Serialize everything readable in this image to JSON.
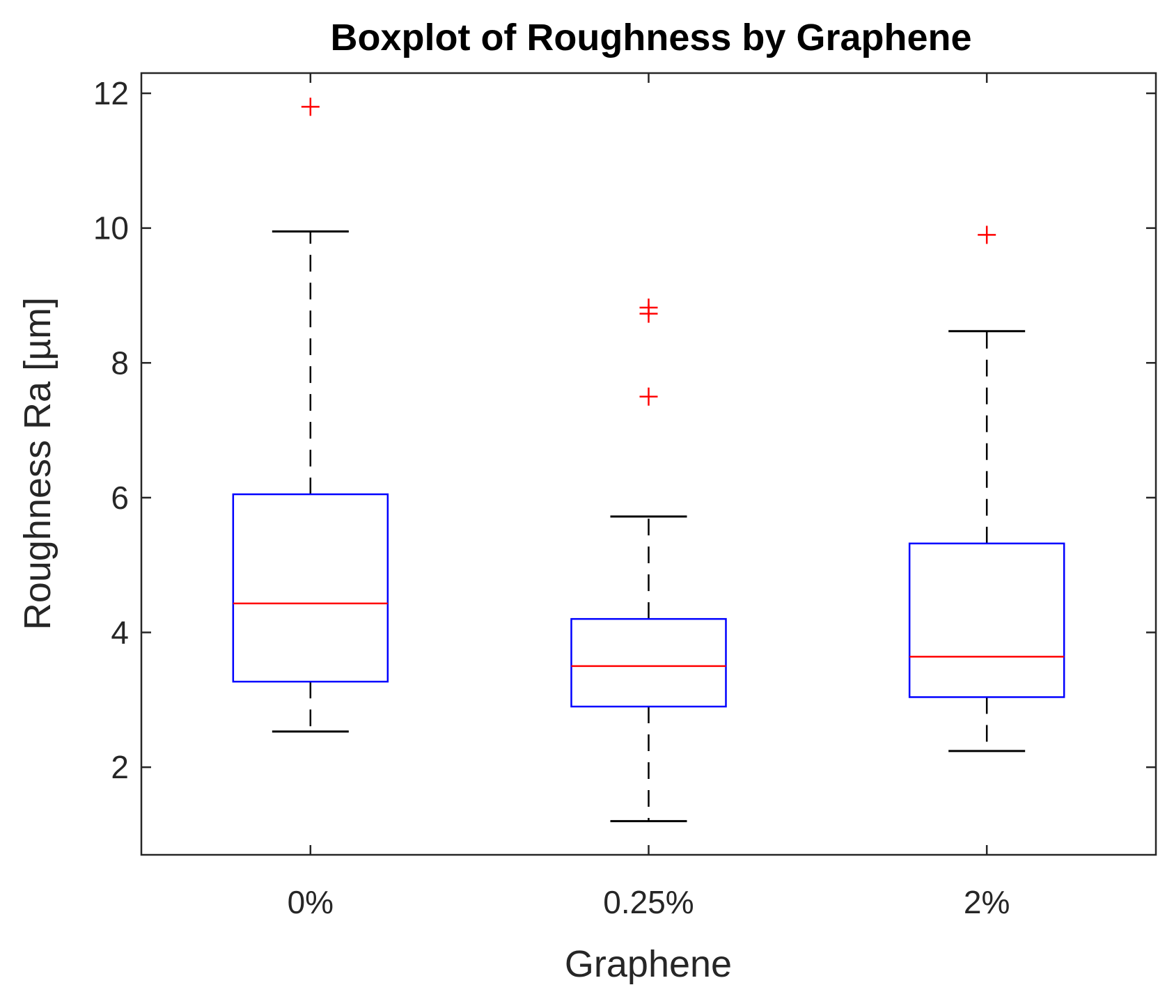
{
  "chart_data": {
    "type": "boxplot",
    "title": "Boxplot of Roughness by Graphene",
    "xlabel": "Graphene",
    "ylabel": "Roughness Ra [µm]",
    "categories": [
      "0%",
      "0.25%",
      "2%"
    ],
    "ylim": [
      0.7,
      12.3
    ],
    "yticks": [
      2,
      4,
      6,
      8,
      10,
      12
    ],
    "ytick_labels": [
      "2",
      "4",
      "6",
      "8",
      "10",
      "12"
    ],
    "grid": false,
    "legend": "none",
    "boxes": [
      {
        "category": "0%",
        "whisker_low": 2.53,
        "q1": 3.27,
        "median": 4.43,
        "q3": 6.05,
        "whisker_high": 9.95,
        "outliers": [
          11.8
        ]
      },
      {
        "category": "0.25%",
        "whisker_low": 1.2,
        "q1": 2.9,
        "median": 3.5,
        "q3": 4.2,
        "whisker_high": 5.72,
        "outliers": [
          7.5,
          8.73,
          8.82
        ]
      },
      {
        "category": "2%",
        "whisker_low": 2.24,
        "q1": 3.04,
        "median": 3.64,
        "q3": 5.32,
        "whisker_high": 8.47,
        "outliers": [
          9.9
        ]
      }
    ],
    "colors": {
      "box": "#0000ff",
      "median": "#ff0000",
      "whisker": "#000000",
      "outlier": "#ff0000",
      "axis": "#262626"
    }
  }
}
